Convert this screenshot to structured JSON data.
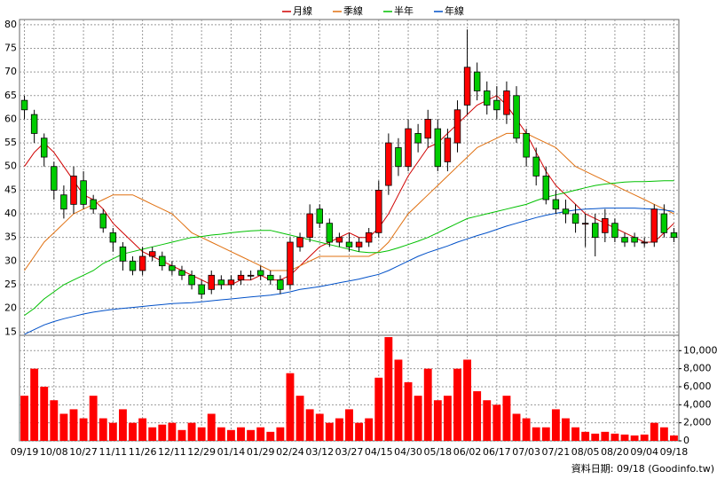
{
  "chart_data": {
    "type": "candlestick",
    "categories": [
      "09/19",
      null,
      null,
      "10/08",
      null,
      null,
      "10/27",
      null,
      null,
      "11/11",
      null,
      null,
      "11/26",
      null,
      null,
      "12/11",
      null,
      null,
      "12/29",
      null,
      null,
      "01/14",
      null,
      null,
      "01/29",
      null,
      null,
      "02/24",
      null,
      null,
      "03/12",
      null,
      null,
      "03/27",
      null,
      null,
      "04/15",
      null,
      null,
      "04/30",
      null,
      null,
      "05/18",
      null,
      null,
      "06/02",
      null,
      null,
      "06/17",
      null,
      null,
      "07/03",
      null,
      null,
      "07/21",
      null,
      null,
      "08/05",
      null,
      null,
      "08/20",
      null,
      null,
      "09/04",
      null,
      null,
      "09/18"
    ],
    "open": [
      64,
      61,
      56,
      50,
      44,
      42,
      47,
      43,
      40,
      36,
      33,
      30,
      28,
      31,
      31,
      29,
      28,
      27,
      25,
      24,
      26,
      25,
      26,
      27,
      28,
      27,
      26,
      25,
      33,
      35,
      41,
      38,
      34,
      34,
      33,
      34,
      36,
      46,
      54,
      50,
      57,
      56,
      58,
      51,
      55,
      63,
      70,
      66,
      64,
      61,
      65,
      57,
      52,
      48,
      43,
      41,
      40,
      38,
      38,
      36,
      38,
      35,
      35,
      34,
      34,
      40,
      36
    ],
    "high": [
      65,
      62,
      57,
      51,
      46,
      50,
      49,
      44,
      41,
      37,
      34,
      31,
      33,
      33,
      32,
      30,
      29,
      28,
      26,
      28,
      27,
      27,
      28,
      28,
      29,
      28,
      27,
      35,
      36,
      42,
      42,
      39,
      36,
      36,
      35,
      37,
      47,
      57,
      56,
      60,
      59,
      62,
      60,
      58,
      64,
      79,
      72,
      68,
      67,
      68,
      67,
      58,
      54,
      50,
      45,
      43,
      42,
      40,
      40,
      41,
      39,
      36,
      36,
      35,
      42,
      42,
      37
    ],
    "low": [
      60,
      55,
      50,
      43,
      39,
      40,
      41,
      40,
      36,
      32,
      28,
      27,
      27,
      30,
      28,
      27,
      26,
      24,
      22,
      23,
      24,
      24,
      25,
      26,
      26,
      25,
      23,
      24,
      32,
      34,
      37,
      33,
      33,
      32,
      32,
      33,
      35,
      44,
      48,
      49,
      53,
      54,
      49,
      49,
      53,
      61,
      64,
      61,
      60,
      59,
      55,
      50,
      46,
      42,
      40,
      38,
      36,
      33,
      31,
      34,
      34,
      33,
      33,
      33,
      33,
      35,
      34
    ],
    "close": [
      62,
      57,
      52,
      45,
      41,
      48,
      42,
      41,
      37,
      34,
      30,
      28,
      31,
      32,
      29,
      28,
      27,
      25,
      23,
      27,
      25,
      26,
      27,
      27,
      27,
      26,
      24,
      34,
      35,
      40,
      38,
      34,
      35,
      33,
      34,
      36,
      45,
      55,
      50,
      58,
      55,
      60,
      50,
      56,
      62,
      71,
      66,
      63,
      62,
      66,
      56,
      52,
      48,
      43,
      41,
      40,
      38,
      38,
      35,
      39,
      35,
      34,
      34,
      34,
      41,
      36,
      35
    ],
    "up_color": "#ff0000",
    "down_color": "#00cc00",
    "series": [
      {
        "name": "月線",
        "color": "#d00000",
        "values": [
          50,
          53,
          55,
          53,
          50,
          47,
          44,
          43,
          41,
          38,
          36,
          34,
          32,
          31,
          30,
          29,
          28,
          27,
          26,
          25,
          25,
          25,
          26,
          26,
          27,
          26,
          26,
          27,
          29,
          31,
          33,
          34,
          35,
          36,
          35,
          35,
          37,
          40,
          44,
          48,
          51,
          54,
          55,
          57,
          59,
          61,
          63,
          64,
          65,
          63,
          60,
          57,
          53,
          49,
          46,
          44,
          42,
          40,
          39,
          38,
          37,
          36,
          35,
          34,
          34,
          36,
          38
        ]
      },
      {
        "name": "季線",
        "color": "#e07010",
        "values": [
          28,
          31,
          34,
          36,
          38,
          40,
          41,
          42,
          43,
          44,
          44,
          44,
          43,
          42,
          41,
          40,
          38,
          36,
          35,
          34,
          33,
          32,
          31,
          30,
          29,
          28,
          28,
          28,
          29,
          30,
          31,
          31,
          31,
          31,
          31,
          31,
          32,
          34,
          37,
          40,
          42,
          44,
          46,
          48,
          50,
          52,
          54,
          55,
          56,
          57,
          57,
          57,
          56,
          55,
          54,
          52,
          50,
          49,
          48,
          47,
          46,
          45,
          44,
          43,
          42,
          41,
          40
        ]
      },
      {
        "name": "半年",
        "color": "#00c000",
        "values": [
          18.5,
          20,
          22,
          23.5,
          25,
          26,
          27,
          28,
          29.5,
          30.5,
          31.5,
          32,
          32.5,
          33,
          33.5,
          34,
          34.5,
          35,
          35.2,
          35.5,
          35.7,
          36,
          36.2,
          36.4,
          36.5,
          36.5,
          36,
          35.5,
          35,
          34.5,
          34,
          33.5,
          33,
          32.5,
          32,
          31.8,
          31.8,
          32.2,
          32.8,
          33.5,
          34.2,
          35,
          36,
          37,
          38,
          39,
          39.5,
          40,
          40.5,
          41,
          41.5,
          42,
          42.8,
          43.5,
          44,
          44.5,
          45,
          45.5,
          46,
          46.3,
          46.5,
          46.7,
          46.8,
          46.8,
          46.9,
          47,
          47
        ]
      },
      {
        "name": "年線",
        "color": "#0050c8",
        "values": [
          14.5,
          15.5,
          16.5,
          17.2,
          17.8,
          18.3,
          18.8,
          19.2,
          19.5,
          19.8,
          20,
          20.2,
          20.4,
          20.6,
          20.8,
          21,
          21.1,
          21.2,
          21.4,
          21.6,
          21.8,
          22,
          22.2,
          22.4,
          22.6,
          22.8,
          23.1,
          23.5,
          24,
          24.3,
          24.6,
          25,
          25.4,
          25.8,
          26.2,
          26.7,
          27.2,
          28,
          29,
          30,
          31,
          31.8,
          32.5,
          33.2,
          34,
          34.7,
          35.4,
          36,
          36.7,
          37.4,
          38,
          38.6,
          39.2,
          39.7,
          40.1,
          40.5,
          40.8,
          41,
          41.1,
          41.2,
          41.2,
          41.2,
          41.2,
          41.1,
          41,
          40.8,
          40.5
        ]
      }
    ],
    "ylim": [
      14.3,
      81.1
    ],
    "yticks": [
      15,
      20,
      25,
      30,
      35,
      40,
      45,
      50,
      55,
      60,
      65,
      70,
      75,
      80
    ],
    "grid": true,
    "volume": {
      "color": "#ff0000",
      "ylim": [
        0,
        11700
      ],
      "yticks": [
        0,
        {
          "value": 2000,
          "label": "2,000"
        },
        {
          "value": 4000,
          "label": "4,000"
        },
        {
          "value": 6000,
          "label": "6,000"
        },
        {
          "value": 8000,
          "label": "8,000"
        },
        {
          "value": 10000,
          "label": "10,000"
        }
      ],
      "values": [
        5000,
        8000,
        6000,
        4500,
        3000,
        3500,
        2500,
        5000,
        2500,
        2000,
        3500,
        2000,
        2500,
        1500,
        1800,
        2000,
        1200,
        2000,
        1500,
        3000,
        1500,
        1200,
        1500,
        1200,
        1500,
        1000,
        1500,
        7500,
        5000,
        3500,
        3000,
        2000,
        2500,
        3500,
        2000,
        2500,
        7000,
        11500,
        9000,
        6500,
        5000,
        8000,
        4500,
        5000,
        8000,
        9000,
        5500,
        4500,
        4000,
        5000,
        3000,
        2500,
        1500,
        1500,
        3500,
        2500,
        1500,
        1000,
        800,
        1000,
        800,
        700,
        600,
        700,
        2000,
        1500,
        600
      ]
    },
    "source_note": "資料日期: 09/18 (Goodinfo.tw)"
  }
}
